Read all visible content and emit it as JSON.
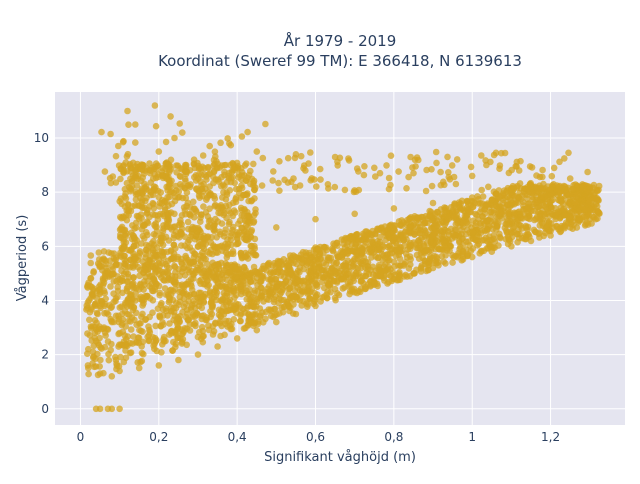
{
  "chart_data": {
    "type": "scatter",
    "title_line1": "År 1979 - 2019",
    "title_line2": "Koordinat (Sweref 99 TM): E 366418, N 6139613",
    "xlabel": "Signifikant våghöjd (m)",
    "ylabel": "Vågperiod (s)",
    "xlim": [
      -0.065,
      1.39
    ],
    "ylim": [
      -0.6,
      11.7
    ],
    "x_ticks": [
      0,
      0.2,
      0.4,
      0.6,
      0.8,
      1.0,
      1.2
    ],
    "x_tick_labels": [
      "0",
      "0,2",
      "0,4",
      "0,6",
      "0,8",
      "1",
      "1,2"
    ],
    "y_ticks": [
      0,
      2,
      4,
      6,
      8,
      10
    ],
    "y_tick_labels": [
      "0",
      "2",
      "4",
      "6",
      "8",
      "10"
    ],
    "grid": true,
    "marker_color": "#D4A420",
    "plot_bg": "#E5E5F0",
    "series": [
      {
        "x": [
          0.02,
          0.05,
          0.08,
          0.02,
          0.04,
          0.06,
          0.08,
          0.1,
          0.12,
          0.14,
          0.03,
          0.05,
          0.07,
          0.09,
          0.11,
          0.13,
          0.15,
          0.1,
          0.15,
          0.2,
          0.25,
          0.3,
          0.35,
          0.4,
          0.45,
          0.5,
          0.55,
          0.6,
          0.65,
          0.7,
          0.75,
          0.8,
          0.85,
          0.9,
          0.95,
          1.0,
          1.05,
          1.1,
          1.15,
          1.2,
          1.25,
          1.3,
          1.32,
          0.2,
          0.3,
          0.4,
          0.5,
          0.6,
          0.7,
          0.8,
          0.9,
          1.0,
          1.1,
          1.2,
          1.3,
          0.15,
          0.18,
          0.22,
          0.25,
          0.28,
          0.16,
          0.2,
          0.24,
          0.27,
          0.3,
          0.12,
          0.14,
          0.19,
          0.23,
          0.26,
          0.11,
          0.16,
          0.21,
          0.29,
          0.33,
          0.38,
          0.45,
          0.55,
          0.65,
          0.75,
          0.85,
          1.0,
          1.12,
          1.25,
          0.05,
          0.08,
          0.1,
          0.04,
          0.07
        ],
        "y": [
          1.5,
          1.3,
          1.2,
          2.2,
          2.5,
          3.0,
          3.2,
          2.8,
          3.5,
          4.0,
          4.2,
          3.8,
          5.0,
          5.5,
          6.0,
          6.5,
          7.0,
          1.4,
          1.5,
          1.6,
          1.8,
          2.0,
          2.3,
          2.6,
          2.9,
          3.2,
          3.5,
          3.8,
          4.1,
          4.3,
          4.6,
          4.8,
          5.0,
          5.2,
          5.4,
          5.6,
          5.8,
          6.0,
          6.2,
          6.4,
          6.7,
          7.0,
          7.3,
          5.5,
          6.0,
          6.3,
          6.7,
          7.0,
          7.2,
          7.4,
          7.6,
          7.8,
          8.0,
          8.1,
          8.2,
          7.5,
          8.0,
          8.5,
          7.8,
          7.2,
          9.0,
          9.5,
          10.0,
          9.0,
          8.5,
          11.0,
          10.5,
          11.2,
          10.8,
          10.2,
          8.8,
          8.0,
          8.6,
          9.2,
          9.7,
          9.8,
          9.5,
          9.4,
          9.3,
          8.9,
          8.7,
          8.6,
          8.8,
          8.5,
          0,
          0,
          0,
          0,
          0
        ]
      }
    ]
  }
}
